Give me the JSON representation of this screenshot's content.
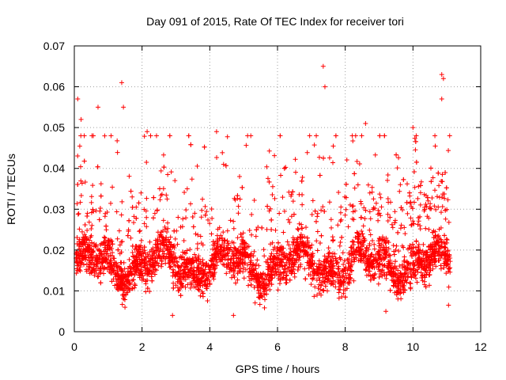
{
  "chart_data": {
    "type": "scatter",
    "title": "Day 091 of 2015, Rate Of TEC Index for receiver tori",
    "xlabel": "GPS time / hours",
    "ylabel": "ROTI / TECUs",
    "xlim": [
      0,
      12
    ],
    "ylim": [
      0,
      0.07
    ],
    "xticks": [
      0,
      2,
      4,
      6,
      8,
      10,
      12
    ],
    "yticks": [
      0,
      0.01,
      0.02,
      0.03,
      0.04,
      0.05,
      0.06,
      0.07
    ],
    "xtick_labels": [
      "0",
      "2",
      "4",
      "6",
      "8",
      "10",
      "12"
    ],
    "ytick_labels": [
      "0",
      "0.01",
      "0.02",
      "0.03",
      "0.04",
      "0.05",
      "0.06",
      "0.07"
    ],
    "grid": true,
    "marker": "+",
    "color": "#ff0000",
    "x_data_range": [
      0.05,
      11.1
    ],
    "typical_band": [
      0.008,
      0.028
    ],
    "notable_points": [
      {
        "x": 0.1,
        "y": 0.057
      },
      {
        "x": 0.2,
        "y": 0.052
      },
      {
        "x": 0.7,
        "y": 0.055
      },
      {
        "x": 1.4,
        "y": 0.061
      },
      {
        "x": 1.45,
        "y": 0.055
      },
      {
        "x": 2.15,
        "y": 0.049
      },
      {
        "x": 4.2,
        "y": 0.049
      },
      {
        "x": 7.35,
        "y": 0.065
      },
      {
        "x": 7.4,
        "y": 0.06
      },
      {
        "x": 8.6,
        "y": 0.051
      },
      {
        "x": 10.0,
        "y": 0.05
      },
      {
        "x": 10.85,
        "y": 0.063
      },
      {
        "x": 10.9,
        "y": 0.062
      },
      {
        "x": 10.85,
        "y": 0.057
      },
      {
        "x": 2.9,
        "y": 0.004
      },
      {
        "x": 4.7,
        "y": 0.004
      },
      {
        "x": 9.2,
        "y": 0.005
      },
      {
        "x": 11.05,
        "y": 0.0065
      }
    ]
  }
}
